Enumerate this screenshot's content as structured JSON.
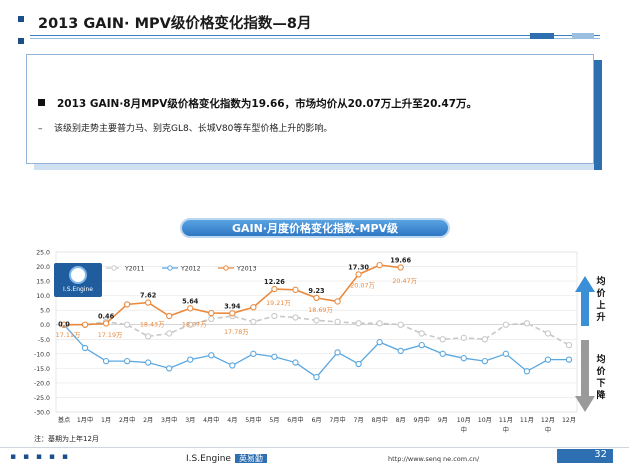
{
  "page": {
    "title": "2013 GAIN· MPV级价格变化指数—8月",
    "bullet_main": "2013 GAIN·8月MPV级价格变化指数为19.66，市场均价从20.07万上升至20.47万。",
    "bullet_sub": "该级别走势主要普力马、别克GL8、长城V80等车型价格上升的影响。",
    "footnote": "注：基期为上年12月",
    "footer_brand": "I.S.Engine",
    "footer_brand_tag": "英易勤",
    "footer_url": "http://www.senq ne.com.cn/",
    "page_number": "32",
    "logo_text": "I.S.Engine",
    "arrow_up_label": "均价上升",
    "arrow_down_label": "均价下降",
    "colors": {
      "accent": "#2e6fb2",
      "y2011": "#c8c8c8",
      "y2012": "#5aa7e0",
      "y2013": "#ea8a3e"
    }
  },
  "chart_data": {
    "type": "line",
    "title": "GAIN·月度价格变化指数-MPV级",
    "categories": [
      "基点",
      "1月中",
      "1月",
      "2月中",
      "2月",
      "3月中",
      "3月",
      "4月中",
      "4月",
      "5月中",
      "5月",
      "6月中",
      "6月",
      "7月中",
      "7月",
      "8月中",
      "8月",
      "9月中",
      "9月",
      "10月中",
      "10月",
      "11月中",
      "11月",
      "12月中",
      "12月"
    ],
    "ylim": [
      -30,
      25
    ],
    "yticks": [
      25.0,
      20.0,
      15.0,
      10.0,
      5.0,
      0.0,
      -5.0,
      -10.0,
      -15.0,
      -20.0,
      -25.0,
      -30.0
    ],
    "grid": true,
    "legend": "top-left",
    "series": [
      {
        "name": "Y2011",
        "values": [
          0,
          0,
          1.0,
          0,
          -4.0,
          -3.0,
          0,
          2.0,
          3.0,
          1.0,
          3.0,
          2.5,
          1.5,
          1.0,
          0.5,
          0.5,
          0,
          -3.0,
          -5.0,
          -4.5,
          -5.0,
          0,
          0.5,
          -3.0,
          -7.0
        ]
      },
      {
        "name": "Y2012",
        "values": [
          0,
          -8.0,
          -12.5,
          -12.5,
          -13.0,
          -15.0,
          -12.0,
          -10.5,
          -14.0,
          -10.0,
          -11.0,
          -13.0,
          -18.0,
          -9.5,
          -13.5,
          -6.0,
          -9.0,
          -7.0,
          -10.0,
          -11.5,
          -12.5,
          -10.0,
          -16.0,
          -12.0,
          -12.0
        ]
      },
      {
        "name": "Y2013",
        "values": [
          0,
          0,
          0.46,
          7.0,
          7.62,
          3.0,
          5.64,
          4.0,
          3.94,
          6.0,
          12.26,
          12.0,
          9.23,
          8.0,
          17.3,
          20.5,
          19.66,
          null,
          null,
          null,
          null,
          null,
          null,
          null,
          null
        ]
      }
    ],
    "data_labels": [
      {
        "text": "0.0",
        "i": 0,
        "y": 0.0,
        "dy": 2
      },
      {
        "text": "0.46",
        "i": 2,
        "y": 0.46,
        "dy": -5
      },
      {
        "text": "7.62",
        "i": 4,
        "y": 7.62,
        "dy": -5
      },
      {
        "text": "5.64",
        "i": 6,
        "y": 5.64,
        "dy": -5
      },
      {
        "text": "3.94",
        "i": 8,
        "y": 3.94,
        "dy": -5
      },
      {
        "text": "12.26",
        "i": 10,
        "y": 12.26,
        "dy": -5
      },
      {
        "text": "9.23",
        "i": 12,
        "y": 9.23,
        "dy": -5
      },
      {
        "text": "17.30",
        "i": 14,
        "y": 17.3,
        "dy": -5
      },
      {
        "text": "19.66",
        "i": 16,
        "y": 19.66,
        "dy": -5
      }
    ],
    "price_labels": [
      {
        "text": "17.11万",
        "i": 0,
        "y": -3.5
      },
      {
        "text": "17.19万",
        "i": 2,
        "y": -3.5
      },
      {
        "text": "18.43万",
        "i": 4,
        "y": 0.0
      },
      {
        "text": "18.07万",
        "i": 6,
        "y": 0.0
      },
      {
        "text": "17.78万",
        "i": 8,
        "y": -2.5
      },
      {
        "text": "19.21万",
        "i": 10,
        "y": 7.5
      },
      {
        "text": "18.69万",
        "i": 12,
        "y": 5.0
      },
      {
        "text": "20.07万",
        "i": 14,
        "y": 13.5
      },
      {
        "text": "20.47万",
        "i": 16,
        "y": 15.0
      }
    ]
  }
}
